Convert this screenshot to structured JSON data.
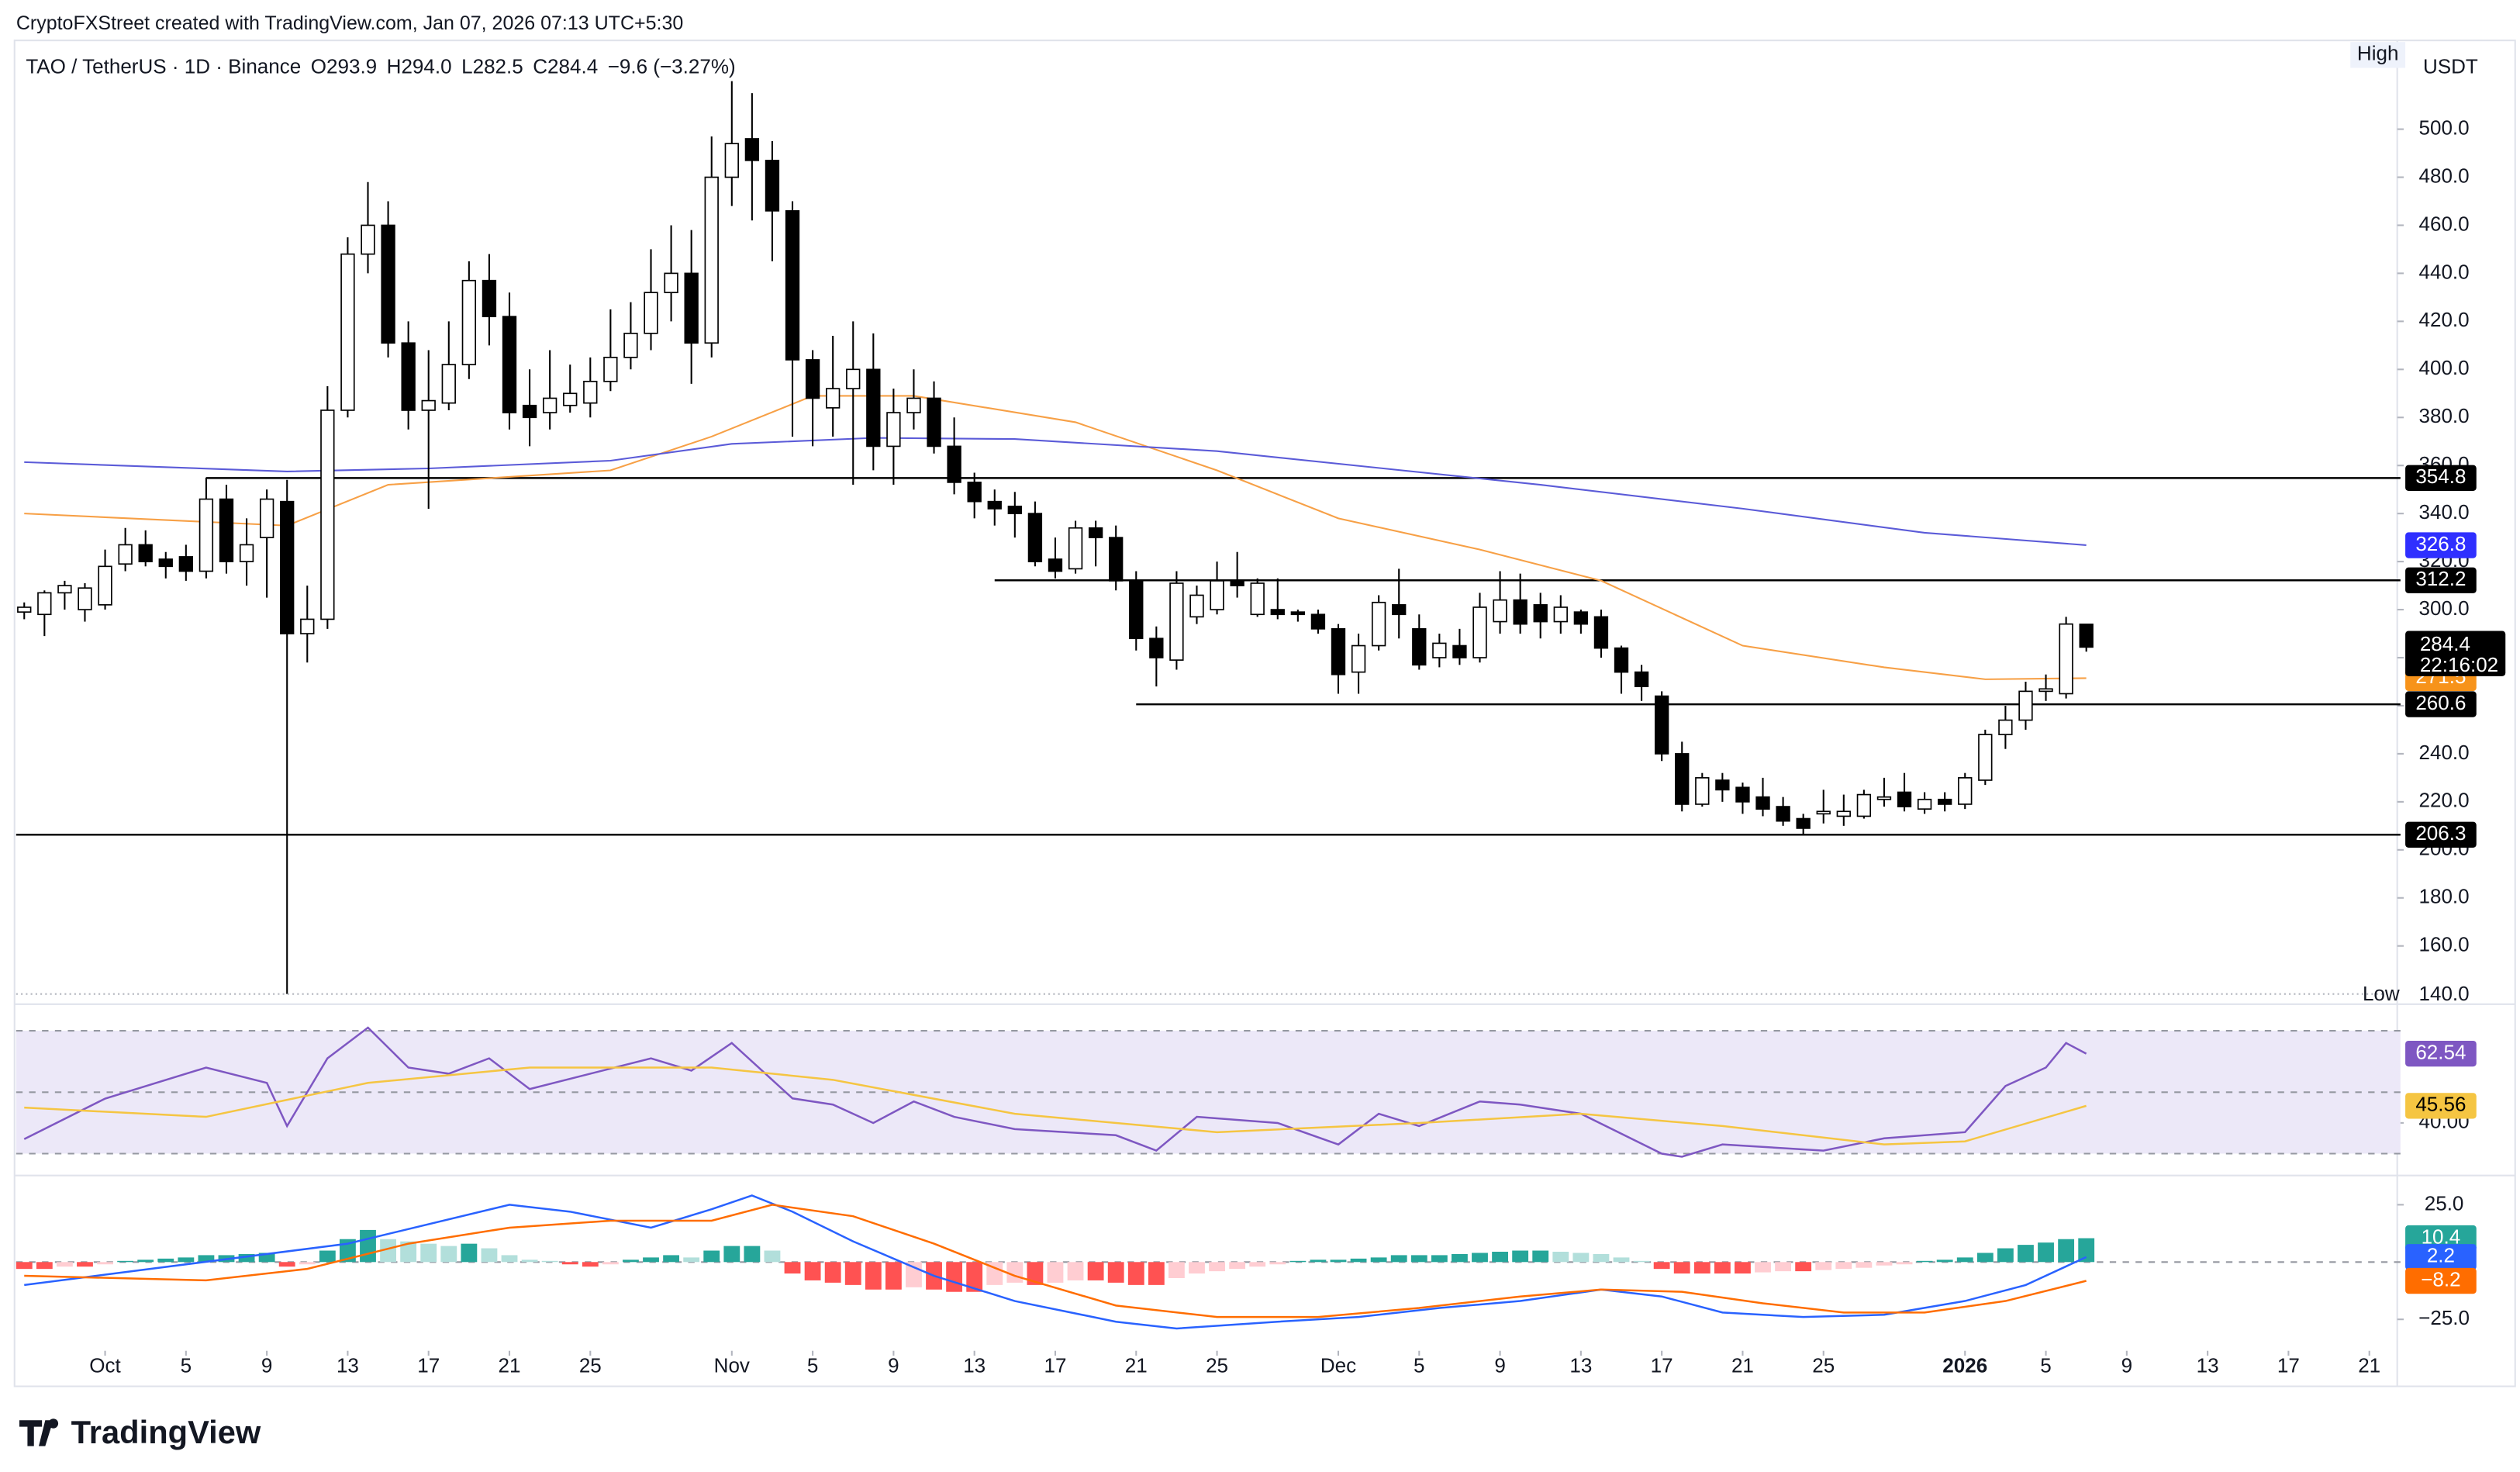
{
  "header": "CryptoFXStreet created with TradingView.com, Jan 07, 2026 07:13 UTC+5:30",
  "footer": "TradingView",
  "chart_data": [
    {
      "type": "candlestick",
      "title": "TAO / TetherUS · 1D · Binance",
      "legend": [
        "O293.9",
        "H294.0",
        "L282.5",
        "C284.4",
        "−9.6 (−3.27%)"
      ],
      "currency": "USDT",
      "high_label": "High",
      "low_label": "Low",
      "low_value": {
        "value": 140,
        "label": "140.0"
      },
      "countdown": "22:16:02",
      "up_color": "#ffffff",
      "down_color": "#000000",
      "xlim": [
        -4.4,
        112.9
      ],
      "xticks": [
        {
          "value": 0,
          "label": "Oct"
        },
        {
          "value": 4,
          "label": "5"
        },
        {
          "value": 8,
          "label": "9"
        },
        {
          "value": 12,
          "label": "13"
        },
        {
          "value": 16,
          "label": "17"
        },
        {
          "value": 20,
          "label": "21"
        },
        {
          "value": 24,
          "label": "25"
        },
        {
          "value": 31,
          "label": "Nov"
        },
        {
          "value": 35,
          "label": "5"
        },
        {
          "value": 39,
          "label": "9"
        },
        {
          "value": 43,
          "label": "13"
        },
        {
          "value": 47,
          "label": "17"
        },
        {
          "value": 51,
          "label": "21"
        },
        {
          "value": 55,
          "label": "25"
        },
        {
          "value": 61,
          "label": "Dec"
        },
        {
          "value": 65,
          "label": "5"
        },
        {
          "value": 69,
          "label": "9"
        },
        {
          "value": 73,
          "label": "13"
        },
        {
          "value": 77,
          "label": "17"
        },
        {
          "value": 81,
          "label": "21"
        },
        {
          "value": 85,
          "label": "25"
        },
        {
          "value": 92,
          "label": "2026"
        },
        {
          "value": 96,
          "label": "5"
        },
        {
          "value": 100,
          "label": "9"
        },
        {
          "value": 104,
          "label": "13"
        },
        {
          "value": 108,
          "label": "17"
        },
        {
          "value": 112,
          "label": "21"
        }
      ],
      "ylim": [
        138.1,
        535.6
      ],
      "yticks": [
        {
          "value": 160,
          "label": "160.0"
        },
        {
          "value": 180,
          "label": "180.0"
        },
        {
          "value": 200,
          "label": "200.0"
        },
        {
          "value": 220,
          "label": "220.0"
        },
        {
          "value": 240,
          "label": "240.0"
        },
        {
          "value": 260,
          "label": "260.0"
        },
        {
          "value": 280,
          "label": "280.0"
        },
        {
          "value": 300,
          "label": "300.0"
        },
        {
          "value": 320,
          "label": "320.0"
        },
        {
          "value": 340,
          "label": "340.0"
        },
        {
          "value": 360,
          "label": "360.0"
        },
        {
          "value": 380,
          "label": "380.0"
        },
        {
          "value": 400,
          "label": "400.0"
        },
        {
          "value": 420,
          "label": "420.0"
        },
        {
          "value": 440,
          "label": "440.0"
        },
        {
          "value": 460,
          "label": "460.0"
        },
        {
          "value": 480,
          "label": "480.0"
        },
        {
          "value": 500,
          "label": "500.0"
        }
      ],
      "x": [
        -4,
        -3,
        -2,
        -1,
        0,
        1,
        2,
        3,
        4,
        5,
        6,
        7,
        8,
        9,
        10,
        11,
        12,
        13,
        14,
        15,
        16,
        17,
        18,
        19,
        20,
        21,
        22,
        23,
        24,
        25,
        26,
        27,
        28,
        29,
        30,
        31,
        32,
        33,
        34,
        35,
        36,
        37,
        38,
        39,
        40,
        41,
        42,
        43,
        44,
        45,
        46,
        47,
        48,
        49,
        50,
        51,
        52,
        53,
        54,
        55,
        56,
        57,
        58,
        59,
        60,
        61,
        62,
        63,
        64,
        65,
        66,
        67,
        68,
        69,
        70,
        71,
        72,
        73,
        74,
        75,
        76,
        77,
        78,
        79,
        80,
        81,
        82,
        83,
        84,
        85,
        86,
        87,
        88,
        89,
        90,
        91,
        92,
        93,
        94,
        95,
        96,
        97,
        98
      ],
      "open": [
        299,
        298,
        307,
        300,
        302,
        319,
        327,
        321,
        322,
        316,
        346,
        320,
        330,
        345,
        290,
        296,
        383,
        448,
        460,
        411,
        383,
        386,
        402,
        437,
        422,
        385,
        382,
        385,
        386,
        395,
        405,
        415,
        432,
        440,
        411,
        480,
        496,
        487,
        466,
        404,
        384,
        392,
        400,
        368,
        382,
        388,
        368,
        353,
        345,
        343,
        340,
        321,
        317,
        334,
        330,
        312,
        288,
        279,
        297,
        300,
        312,
        298,
        300,
        299,
        298,
        292,
        274,
        285,
        302,
        292,
        280,
        285,
        280,
        295,
        304,
        302,
        295,
        299,
        297,
        284,
        274,
        264,
        240,
        219,
        229,
        226,
        222,
        218,
        213,
        215,
        214,
        214,
        221,
        224,
        217,
        221,
        219,
        229,
        248,
        254,
        266,
        265,
        293.9
      ],
      "high": [
        303,
        308,
        312,
        311,
        325,
        334,
        333,
        324,
        327,
        355,
        352,
        338,
        350,
        354,
        310,
        393,
        455,
        478,
        470,
        420,
        408,
        420,
        445,
        448,
        432,
        400,
        408,
        402,
        405,
        425,
        428,
        450,
        460,
        458,
        497,
        520,
        515,
        495,
        470,
        408,
        414,
        420,
        415,
        392,
        400,
        395,
        380,
        357,
        350,
        349,
        345,
        330,
        337,
        337,
        335,
        316,
        293,
        316,
        310,
        320,
        324,
        313,
        313,
        300,
        300,
        294,
        290,
        306,
        317,
        298,
        290,
        292,
        307,
        316,
        315,
        307,
        306,
        300,
        300,
        285,
        277,
        266,
        245,
        232,
        232,
        228,
        230,
        222,
        215,
        225,
        223,
        225,
        230,
        232,
        224,
        224,
        232,
        250,
        260,
        270,
        273,
        297,
        294
      ],
      "low": [
        296,
        289,
        300,
        295,
        300,
        316,
        318,
        313,
        312,
        313,
        315,
        310,
        305,
        140,
        278,
        292,
        380,
        440,
        405,
        375,
        342,
        383,
        396,
        410,
        375,
        368,
        375,
        382,
        380,
        391,
        400,
        408,
        420,
        394,
        405,
        468,
        462,
        445,
        372,
        368,
        372,
        352,
        358,
        352,
        375,
        365,
        348,
        338,
        335,
        330,
        318,
        313,
        315,
        318,
        308,
        283,
        268,
        275,
        294,
        298,
        305,
        297,
        296,
        295,
        290,
        265,
        265,
        283,
        288,
        275,
        276,
        277,
        278,
        290,
        290,
        288,
        290,
        290,
        280,
        265,
        262,
        237,
        216,
        218,
        220,
        215,
        214,
        210,
        206,
        211,
        210,
        213,
        218,
        216,
        215,
        216,
        217,
        227,
        242,
        250,
        262,
        263,
        282.5
      ],
      "close": [
        301,
        307,
        310,
        309,
        318,
        327,
        320,
        318,
        316,
        346,
        320,
        327,
        346,
        290,
        296,
        383,
        448,
        460,
        411,
        383,
        387,
        402,
        437,
        422,
        382,
        380,
        388,
        390,
        395,
        405,
        415,
        432,
        440,
        411,
        480,
        494,
        487,
        466,
        404,
        388,
        392,
        400,
        368,
        382,
        388,
        368,
        353,
        345,
        342,
        340,
        320,
        316,
        334,
        330,
        312,
        288,
        280,
        311,
        306,
        312,
        310,
        311,
        298,
        298,
        292,
        273,
        285,
        303,
        298,
        277,
        286,
        280,
        301,
        304,
        294,
        295,
        301,
        294,
        284,
        274,
        268,
        240,
        219,
        230,
        225,
        220,
        217,
        212,
        209,
        216,
        216,
        223,
        222,
        218,
        221,
        219,
        230,
        248,
        254,
        266,
        267,
        294,
        284.4
      ],
      "series": [
        {
          "color": "#f7a046",
          "x": [
            -4,
            9,
            14,
            25,
            30,
            35,
            40,
            48,
            55,
            61,
            68,
            74,
            81,
            88,
            93,
            98
          ],
          "values": [
            340,
            335,
            352,
            358,
            372,
            389,
            389,
            378,
            358,
            338,
            325,
            312,
            285,
            276,
            271,
            271.5
          ]
        },
        {
          "color": "#5b5bd8",
          "x": [
            -4,
            9,
            16,
            25,
            31,
            38,
            45,
            55,
            63,
            71,
            81,
            90,
            98
          ],
          "values": [
            361.4,
            357.5,
            358.8,
            362,
            369,
            371.5,
            371,
            366,
            359,
            352,
            342,
            332,
            326.8
          ]
        }
      ],
      "levels": [
        {
          "value": 354.8,
          "x_start": 5
        },
        {
          "value": 312.2,
          "x_start": 44
        },
        {
          "value": 260.6,
          "x_start": 51
        },
        {
          "value": 206.3,
          "x_start": -4.4
        }
      ]
    },
    {
      "type": "rsi",
      "ylim": [
        24.2,
        76.8
      ],
      "yticks": [
        {
          "value": 40,
          "label": "40.00"
        }
      ],
      "levels": [
        70,
        50,
        30
      ],
      "band_color": "#ece8f8",
      "series": [
        {
          "color": "#7e57c2",
          "x": [
            -4,
            0,
            5,
            8,
            9,
            11,
            13,
            15,
            17,
            19,
            21,
            24,
            27,
            29,
            31,
            34,
            36,
            38,
            40,
            42,
            45,
            50,
            52,
            54,
            58,
            61,
            63,
            65,
            68,
            70,
            73,
            77,
            78,
            80,
            85,
            88,
            92,
            94,
            96,
            97,
            98
          ],
          "values": [
            34.7,
            47.9,
            58,
            53,
            39,
            61,
            71,
            58,
            56,
            61,
            51,
            56,
            61,
            57,
            66,
            48,
            46,
            40,
            47,
            42,
            38,
            36,
            31,
            42,
            40,
            33,
            43,
            39,
            47,
            46,
            43,
            30,
            29,
            33,
            31,
            35,
            37,
            52,
            58,
            66,
            62.54
          ]
        },
        {
          "color": "#f5c542",
          "x": [
            -4,
            5,
            13,
            21,
            30,
            36,
            45,
            55,
            65,
            73,
            80,
            88,
            92,
            98
          ],
          "values": [
            45,
            42,
            53,
            58,
            58,
            54,
            43,
            37,
            40,
            43,
            39,
            33,
            34,
            45.56
          ]
        }
      ]
    },
    {
      "type": "macd",
      "ylim": [
        -38,
        36
      ],
      "yticks": [
        {
          "value": 25,
          "label": "25.0"
        },
        {
          "value": -25,
          "label": "−25.0"
        }
      ],
      "hist_colors": {
        "pos_up": "#26a69a",
        "pos_down": "#b2dfdb",
        "neg_down": "#ff5252",
        "neg_up": "#ffcdd2"
      },
      "histogram": [
        -3,
        -3,
        -2,
        -2,
        -1,
        0.5,
        1,
        1.5,
        2,
        3,
        3,
        3.5,
        4,
        -2,
        -1,
        5,
        10,
        14,
        10,
        9,
        8,
        7,
        8,
        6,
        3,
        1,
        0.5,
        -1,
        -2,
        -1,
        1,
        2,
        3,
        2,
        5,
        7,
        7,
        5,
        -5,
        -8,
        -9,
        -10,
        -12,
        -12,
        -11,
        -12,
        -13,
        -13,
        -10,
        -9,
        -10,
        -9,
        -8,
        -8,
        -9,
        -10,
        -10,
        -7,
        -5,
        -4,
        -3,
        -2,
        -1,
        0.5,
        1,
        1,
        1.5,
        2,
        3,
        3,
        3,
        3.5,
        4,
        4.5,
        5,
        5,
        4.5,
        4,
        3.5,
        2,
        0.5,
        -3,
        -5,
        -5,
        -5,
        -5,
        -4.5,
        -4,
        -4,
        -3.5,
        -3,
        -2.5,
        -1.5,
        -1,
        0.5,
        1,
        2,
        4,
        6,
        7.5,
        8.5,
        10,
        10.4
      ],
      "series": [
        {
          "color": "#2962ff",
          "x": [
            -4,
            12,
            20,
            23,
            27,
            30,
            32,
            34,
            37,
            41,
            45,
            50,
            53,
            58,
            62,
            66,
            70,
            74,
            77,
            80,
            84,
            88,
            92,
            95,
            98
          ],
          "values": [
            -10,
            8,
            25,
            22,
            15,
            23,
            29,
            22,
            9,
            -6,
            -17,
            -26,
            -29,
            -26,
            -24,
            -20,
            -17,
            -12,
            -15,
            -22,
            -24,
            -23,
            -17,
            -10,
            2.2
          ]
        },
        {
          "color": "#ff6d00",
          "x": [
            -4,
            5,
            10,
            15,
            20,
            25,
            30,
            33,
            37,
            41,
            45,
            50,
            55,
            60,
            65,
            70,
            74,
            78,
            82,
            86,
            90,
            94,
            98
          ],
          "values": [
            -6,
            -8,
            -3,
            8,
            15,
            18,
            18,
            25,
            20,
            8,
            -6,
            -19,
            -24,
            -24,
            -20,
            -15,
            -12,
            -13,
            -18,
            -22,
            -22,
            -17,
            -8.2
          ],
          "last_label": "−8.2"
        }
      ]
    }
  ]
}
